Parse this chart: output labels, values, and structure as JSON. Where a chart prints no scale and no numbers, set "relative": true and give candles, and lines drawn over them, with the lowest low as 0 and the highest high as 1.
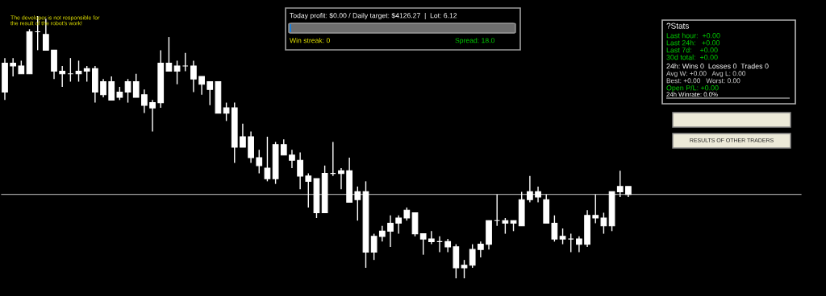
{
  "chart_data": {
    "type": "candlestick",
    "relative": true,
    "color": "#ffffff",
    "categories": [
      null,
      null,
      null,
      null,
      null,
      null,
      null,
      null,
      null,
      null,
      null,
      null,
      null,
      null,
      null,
      null,
      null,
      null,
      null,
      null,
      null,
      null,
      null,
      null,
      null,
      null,
      null,
      null,
      null,
      null,
      null,
      null,
      null,
      null,
      null,
      null,
      null,
      null,
      null,
      null,
      null,
      null,
      null,
      null,
      null,
      null,
      null,
      null,
      null,
      null,
      null,
      null,
      null,
      null,
      null,
      null,
      null,
      null,
      null,
      null,
      null,
      null,
      null,
      null,
      null,
      null,
      null,
      null,
      null,
      null,
      null,
      null,
      null,
      null,
      null,
      null,
      null
    ],
    "ohlc": [
      [
        0.71,
        0.84,
        0.68,
        0.82
      ],
      [
        0.81,
        0.84,
        0.77,
        0.82
      ],
      [
        0.78,
        0.83,
        0.78,
        0.81
      ],
      [
        0.78,
        0.95,
        0.78,
        0.94
      ],
      [
        0.94,
        1.0,
        0.87,
        0.94
      ],
      [
        0.87,
        0.99,
        0.87,
        0.93
      ],
      [
        0.79,
        0.87,
        0.76,
        0.87
      ],
      [
        0.78,
        0.81,
        0.73,
        0.79
      ],
      [
        0.78,
        0.84,
        0.75,
        0.78
      ],
      [
        0.78,
        0.83,
        0.75,
        0.79
      ],
      [
        0.79,
        0.81,
        0.75,
        0.8
      ],
      [
        0.71,
        0.81,
        0.67,
        0.8
      ],
      [
        0.7,
        0.76,
        0.69,
        0.75
      ],
      [
        0.68,
        0.77,
        0.68,
        0.75
      ],
      [
        0.69,
        0.73,
        0.68,
        0.71
      ],
      [
        0.71,
        0.76,
        0.67,
        0.75
      ],
      [
        0.69,
        0.78,
        0.69,
        0.75
      ],
      [
        0.66,
        0.72,
        0.63,
        0.7
      ],
      [
        0.65,
        0.68,
        0.56,
        0.67
      ],
      [
        0.67,
        0.87,
        0.65,
        0.82
      ],
      [
        0.79,
        0.92,
        0.79,
        0.82
      ],
      [
        0.79,
        0.83,
        0.74,
        0.81
      ],
      [
        0.81,
        0.86,
        0.79,
        0.81
      ],
      [
        0.76,
        0.83,
        0.71,
        0.81
      ],
      [
        0.74,
        0.77,
        0.7,
        0.77
      ],
      [
        0.72,
        0.75,
        0.66,
        0.75
      ],
      [
        0.63,
        0.75,
        0.63,
        0.75
      ],
      [
        0.63,
        0.67,
        0.6,
        0.65
      ],
      [
        0.5,
        0.67,
        0.44,
        0.65
      ],
      [
        0.5,
        0.59,
        0.5,
        0.54
      ],
      [
        0.46,
        0.56,
        0.44,
        0.54
      ],
      [
        0.43,
        0.49,
        0.4,
        0.46
      ],
      [
        0.38,
        0.54,
        0.37,
        0.42
      ],
      [
        0.38,
        0.52,
        0.36,
        0.51
      ],
      [
        0.47,
        0.53,
        0.47,
        0.51
      ],
      [
        0.45,
        0.49,
        0.42,
        0.47
      ],
      [
        0.39,
        0.48,
        0.34,
        0.45
      ],
      [
        0.37,
        0.4,
        0.27,
        0.39
      ],
      [
        0.25,
        0.38,
        0.23,
        0.38
      ],
      [
        0.25,
        0.43,
        0.25,
        0.4
      ],
      [
        0.4,
        0.52,
        0.39,
        0.4
      ],
      [
        0.4,
        0.42,
        0.34,
        0.41
      ],
      [
        0.29,
        0.46,
        0.29,
        0.41
      ],
      [
        0.3,
        0.35,
        0.22,
        0.33
      ],
      [
        0.1,
        0.37,
        0.04,
        0.33
      ],
      [
        0.1,
        0.17,
        0.07,
        0.16
      ],
      [
        0.16,
        0.2,
        0.14,
        0.18
      ],
      [
        0.18,
        0.24,
        0.12,
        0.21
      ],
      [
        0.21,
        0.24,
        0.17,
        0.23
      ],
      [
        0.23,
        0.27,
        0.22,
        0.26
      ],
      [
        0.17,
        0.25,
        0.16,
        0.25
      ],
      [
        0.15,
        0.17,
        0.09,
        0.17
      ],
      [
        0.14,
        0.18,
        0.13,
        0.15
      ],
      [
        0.14,
        0.16,
        0.1,
        0.14
      ],
      [
        0.12,
        0.15,
        0.1,
        0.14
      ],
      [
        0.04,
        0.13,
        0.0,
        0.12
      ],
      [
        0.04,
        0.07,
        0.0,
        0.05
      ],
      [
        0.05,
        0.13,
        0.04,
        0.11
      ],
      [
        0.11,
        0.14,
        0.08,
        0.13
      ],
      [
        0.13,
        0.22,
        0.11,
        0.22
      ],
      [
        0.22,
        0.32,
        0.2,
        0.22
      ],
      [
        0.21,
        0.23,
        0.17,
        0.22
      ],
      [
        0.21,
        0.22,
        0.18,
        0.22
      ],
      [
        0.2,
        0.33,
        0.2,
        0.3
      ],
      [
        0.3,
        0.39,
        0.29,
        0.33
      ],
      [
        0.31,
        0.35,
        0.29,
        0.33
      ],
      [
        0.21,
        0.32,
        0.21,
        0.3
      ],
      [
        0.15,
        0.24,
        0.14,
        0.21
      ],
      [
        0.15,
        0.19,
        0.13,
        0.16
      ],
      [
        0.15,
        0.17,
        0.1,
        0.15
      ],
      [
        0.13,
        0.16,
        0.1,
        0.15
      ],
      [
        0.13,
        0.26,
        0.12,
        0.24
      ],
      [
        0.23,
        0.32,
        0.21,
        0.24
      ],
      [
        0.2,
        0.25,
        0.17,
        0.23
      ],
      [
        0.2,
        0.33,
        0.18,
        0.33
      ],
      [
        0.33,
        0.41,
        0.31,
        0.35
      ],
      [
        0.32,
        0.35,
        0.31,
        0.35
      ]
    ],
    "ref_lines": [
      {
        "axis": "y",
        "value": 0.32,
        "color": "#a0a0a0"
      }
    ],
    "annotations": [
      "The developer is not responsible for\nthe result of the robot's work!",
      "Today profit: $0.00 / Daily target: $4126.27  |  Lot: 6.12",
      "Win streak: 0",
      "Spread: 18.0",
      "?Stats",
      "Last hour:  +0.00",
      "Last 24h:   +0.00",
      "Last 7d:    +0.00",
      "30d total:  +0.00",
      "24h: Wins 0  Losses 0  Trades 0",
      "Avg W: +0.00   Avg L: 0.00",
      "Best: +0.00   Worst: 0.00",
      "Open P/L: +0.00",
      "24h Winrate: 0.0%",
      "RESULTS OF OTHER TRADERS"
    ]
  }
}
